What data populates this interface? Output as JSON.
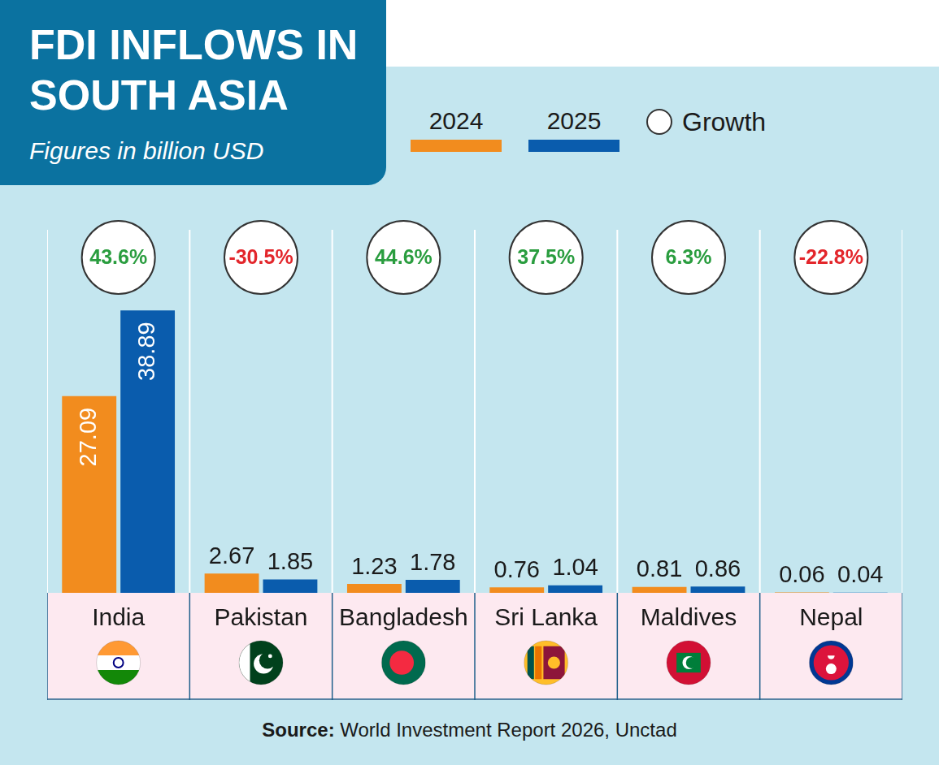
{
  "chart_data": {
    "type": "bar",
    "title": "FDI INFLOWS IN SOUTH ASIA",
    "subtitle": "Figures in billion USD",
    "source_label": "Source:",
    "source": "World Investment Report 2026, Unctad",
    "categories": [
      "India",
      "Pakistan",
      "Bangladesh",
      "Sri Lanka",
      "Maldives",
      "Nepal"
    ],
    "series": [
      {
        "name": "2024",
        "color": "#f28c1e",
        "values": [
          27.09,
          2.67,
          1.23,
          0.76,
          0.81,
          0.06
        ]
      },
      {
        "name": "2025",
        "color": "#0a5cad",
        "values": [
          38.89,
          1.85,
          1.78,
          1.04,
          0.86,
          0.04
        ]
      }
    ],
    "growth": {
      "name": "Growth",
      "values": [
        43.6,
        -30.5,
        44.6,
        37.5,
        6.3,
        -22.8
      ],
      "value_labels": [
        "43.6%",
        "-30.5%",
        "44.6%",
        "37.5%",
        "6.3%",
        "-22.8%"
      ],
      "colors": [
        "#2a9d3f",
        "#e3262b",
        "#2a9d3f",
        "#2a9d3f",
        "#2a9d3f",
        "#e3262b"
      ]
    },
    "ylim": [
      0,
      50
    ],
    "grid": false,
    "tick_labels": "x",
    "data_labels": true,
    "legend": "top"
  }
}
